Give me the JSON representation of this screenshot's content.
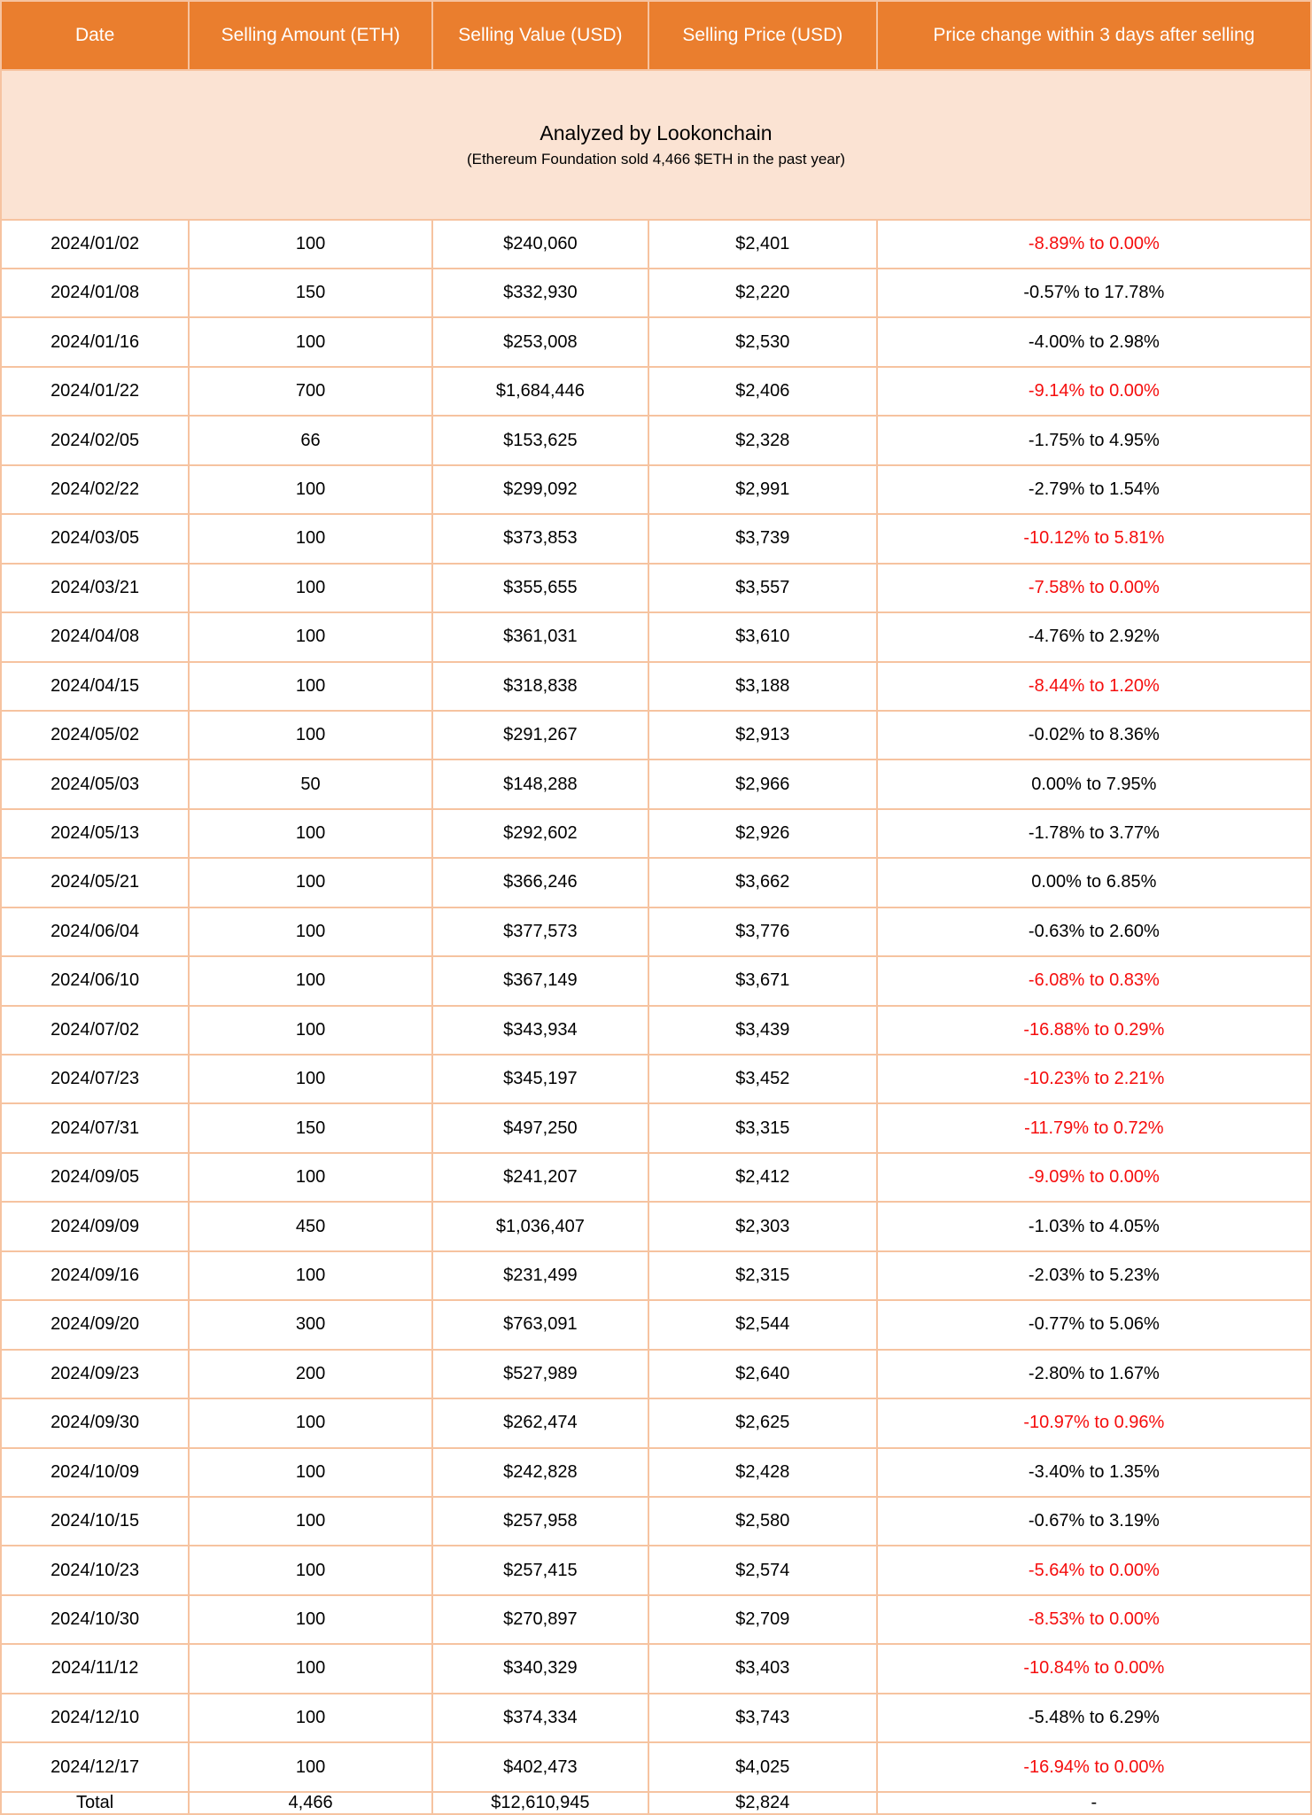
{
  "chart_data": {
    "type": "table",
    "title": "Analyzed by Lookonchain",
    "subtitle": "(Ethereum Foundation sold 4,466 $ETH in the past year)",
    "columns": [
      "Date",
      "Selling Amount (ETH)",
      "Selling Value (USD)",
      "Selling Price (USD)",
      "Price change within 3 days after selling"
    ],
    "rows": [
      {
        "date": "2024/01/02",
        "amount": "100",
        "value": "$240,060",
        "price": "$2,401",
        "change": "-8.89% to 0.00%",
        "red": true
      },
      {
        "date": "2024/01/08",
        "amount": "150",
        "value": "$332,930",
        "price": "$2,220",
        "change": "-0.57% to 17.78%",
        "red": false
      },
      {
        "date": "2024/01/16",
        "amount": "100",
        "value": "$253,008",
        "price": "$2,530",
        "change": "-4.00% to 2.98%",
        "red": false
      },
      {
        "date": "2024/01/22",
        "amount": "700",
        "value": "$1,684,446",
        "price": "$2,406",
        "change": "-9.14% to 0.00%",
        "red": true
      },
      {
        "date": "2024/02/05",
        "amount": "66",
        "value": "$153,625",
        "price": "$2,328",
        "change": "-1.75% to 4.95%",
        "red": false
      },
      {
        "date": "2024/02/22",
        "amount": "100",
        "value": "$299,092",
        "price": "$2,991",
        "change": "-2.79% to 1.54%",
        "red": false
      },
      {
        "date": "2024/03/05",
        "amount": "100",
        "value": "$373,853",
        "price": "$3,739",
        "change": "-10.12% to 5.81%",
        "red": true
      },
      {
        "date": "2024/03/21",
        "amount": "100",
        "value": "$355,655",
        "price": "$3,557",
        "change": "-7.58% to 0.00%",
        "red": true
      },
      {
        "date": "2024/04/08",
        "amount": "100",
        "value": "$361,031",
        "price": "$3,610",
        "change": "-4.76% to 2.92%",
        "red": false
      },
      {
        "date": "2024/04/15",
        "amount": "100",
        "value": "$318,838",
        "price": "$3,188",
        "change": "-8.44% to 1.20%",
        "red": true
      },
      {
        "date": "2024/05/02",
        "amount": "100",
        "value": "$291,267",
        "price": "$2,913",
        "change": "-0.02% to 8.36%",
        "red": false
      },
      {
        "date": "2024/05/03",
        "amount": "50",
        "value": "$148,288",
        "price": "$2,966",
        "change": "0.00% to 7.95%",
        "red": false
      },
      {
        "date": "2024/05/13",
        "amount": "100",
        "value": "$292,602",
        "price": "$2,926",
        "change": "-1.78% to 3.77%",
        "red": false
      },
      {
        "date": "2024/05/21",
        "amount": "100",
        "value": "$366,246",
        "price": "$3,662",
        "change": "0.00% to 6.85%",
        "red": false
      },
      {
        "date": "2024/06/04",
        "amount": "100",
        "value": "$377,573",
        "price": "$3,776",
        "change": "-0.63% to 2.60%",
        "red": false
      },
      {
        "date": "2024/06/10",
        "amount": "100",
        "value": "$367,149",
        "price": "$3,671",
        "change": "-6.08% to 0.83%",
        "red": true
      },
      {
        "date": "2024/07/02",
        "amount": "100",
        "value": "$343,934",
        "price": "$3,439",
        "change": "-16.88% to 0.29%",
        "red": true
      },
      {
        "date": "2024/07/23",
        "amount": "100",
        "value": "$345,197",
        "price": "$3,452",
        "change": "-10.23% to 2.21%",
        "red": true
      },
      {
        "date": "2024/07/31",
        "amount": "150",
        "value": "$497,250",
        "price": "$3,315",
        "change": "-11.79% to 0.72%",
        "red": true
      },
      {
        "date": "2024/09/05",
        "amount": "100",
        "value": "$241,207",
        "price": "$2,412",
        "change": "-9.09% to 0.00%",
        "red": true
      },
      {
        "date": "2024/09/09",
        "amount": "450",
        "value": "$1,036,407",
        "price": "$2,303",
        "change": "-1.03% to 4.05%",
        "red": false
      },
      {
        "date": "2024/09/16",
        "amount": "100",
        "value": "$231,499",
        "price": "$2,315",
        "change": "-2.03% to 5.23%",
        "red": false
      },
      {
        "date": "2024/09/20",
        "amount": "300",
        "value": "$763,091",
        "price": "$2,544",
        "change": "-0.77% to 5.06%",
        "red": false
      },
      {
        "date": "2024/09/23",
        "amount": "200",
        "value": "$527,989",
        "price": "$2,640",
        "change": "-2.80% to 1.67%",
        "red": false
      },
      {
        "date": "2024/09/30",
        "amount": "100",
        "value": "$262,474",
        "price": "$2,625",
        "change": "-10.97% to 0.96%",
        "red": true
      },
      {
        "date": "2024/10/09",
        "amount": "100",
        "value": "$242,828",
        "price": "$2,428",
        "change": "-3.40% to 1.35%",
        "red": false
      },
      {
        "date": "2024/10/15",
        "amount": "100",
        "value": "$257,958",
        "price": "$2,580",
        "change": "-0.67% to 3.19%",
        "red": false
      },
      {
        "date": "2024/10/23",
        "amount": "100",
        "value": "$257,415",
        "price": "$2,574",
        "change": "-5.64% to 0.00%",
        "red": true
      },
      {
        "date": "2024/10/30",
        "amount": "100",
        "value": "$270,897",
        "price": "$2,709",
        "change": "-8.53% to 0.00%",
        "red": true
      },
      {
        "date": "2024/11/12",
        "amount": "100",
        "value": "$340,329",
        "price": "$3,403",
        "change": "-10.84% to 0.00%",
        "red": true
      },
      {
        "date": "2024/12/10",
        "amount": "100",
        "value": "$374,334",
        "price": "$3,743",
        "change": "-5.48% to 6.29%",
        "red": false
      },
      {
        "date": "2024/12/17",
        "amount": "100",
        "value": "$402,473",
        "price": "$4,025",
        "change": "-16.94% to 0.00%",
        "red": true
      }
    ],
    "total": {
      "label": "Total",
      "amount": "4,466",
      "value": "$12,610,945",
      "price": "$2,824",
      "change": "-"
    }
  },
  "colors": {
    "header_bg": "#EA7E2E",
    "header_text": "#FFFFFF",
    "banner_bg": "#FBE3D3",
    "border": "#F6C3A0",
    "body_text": "#000000",
    "negative_text": "#F50D0D"
  }
}
